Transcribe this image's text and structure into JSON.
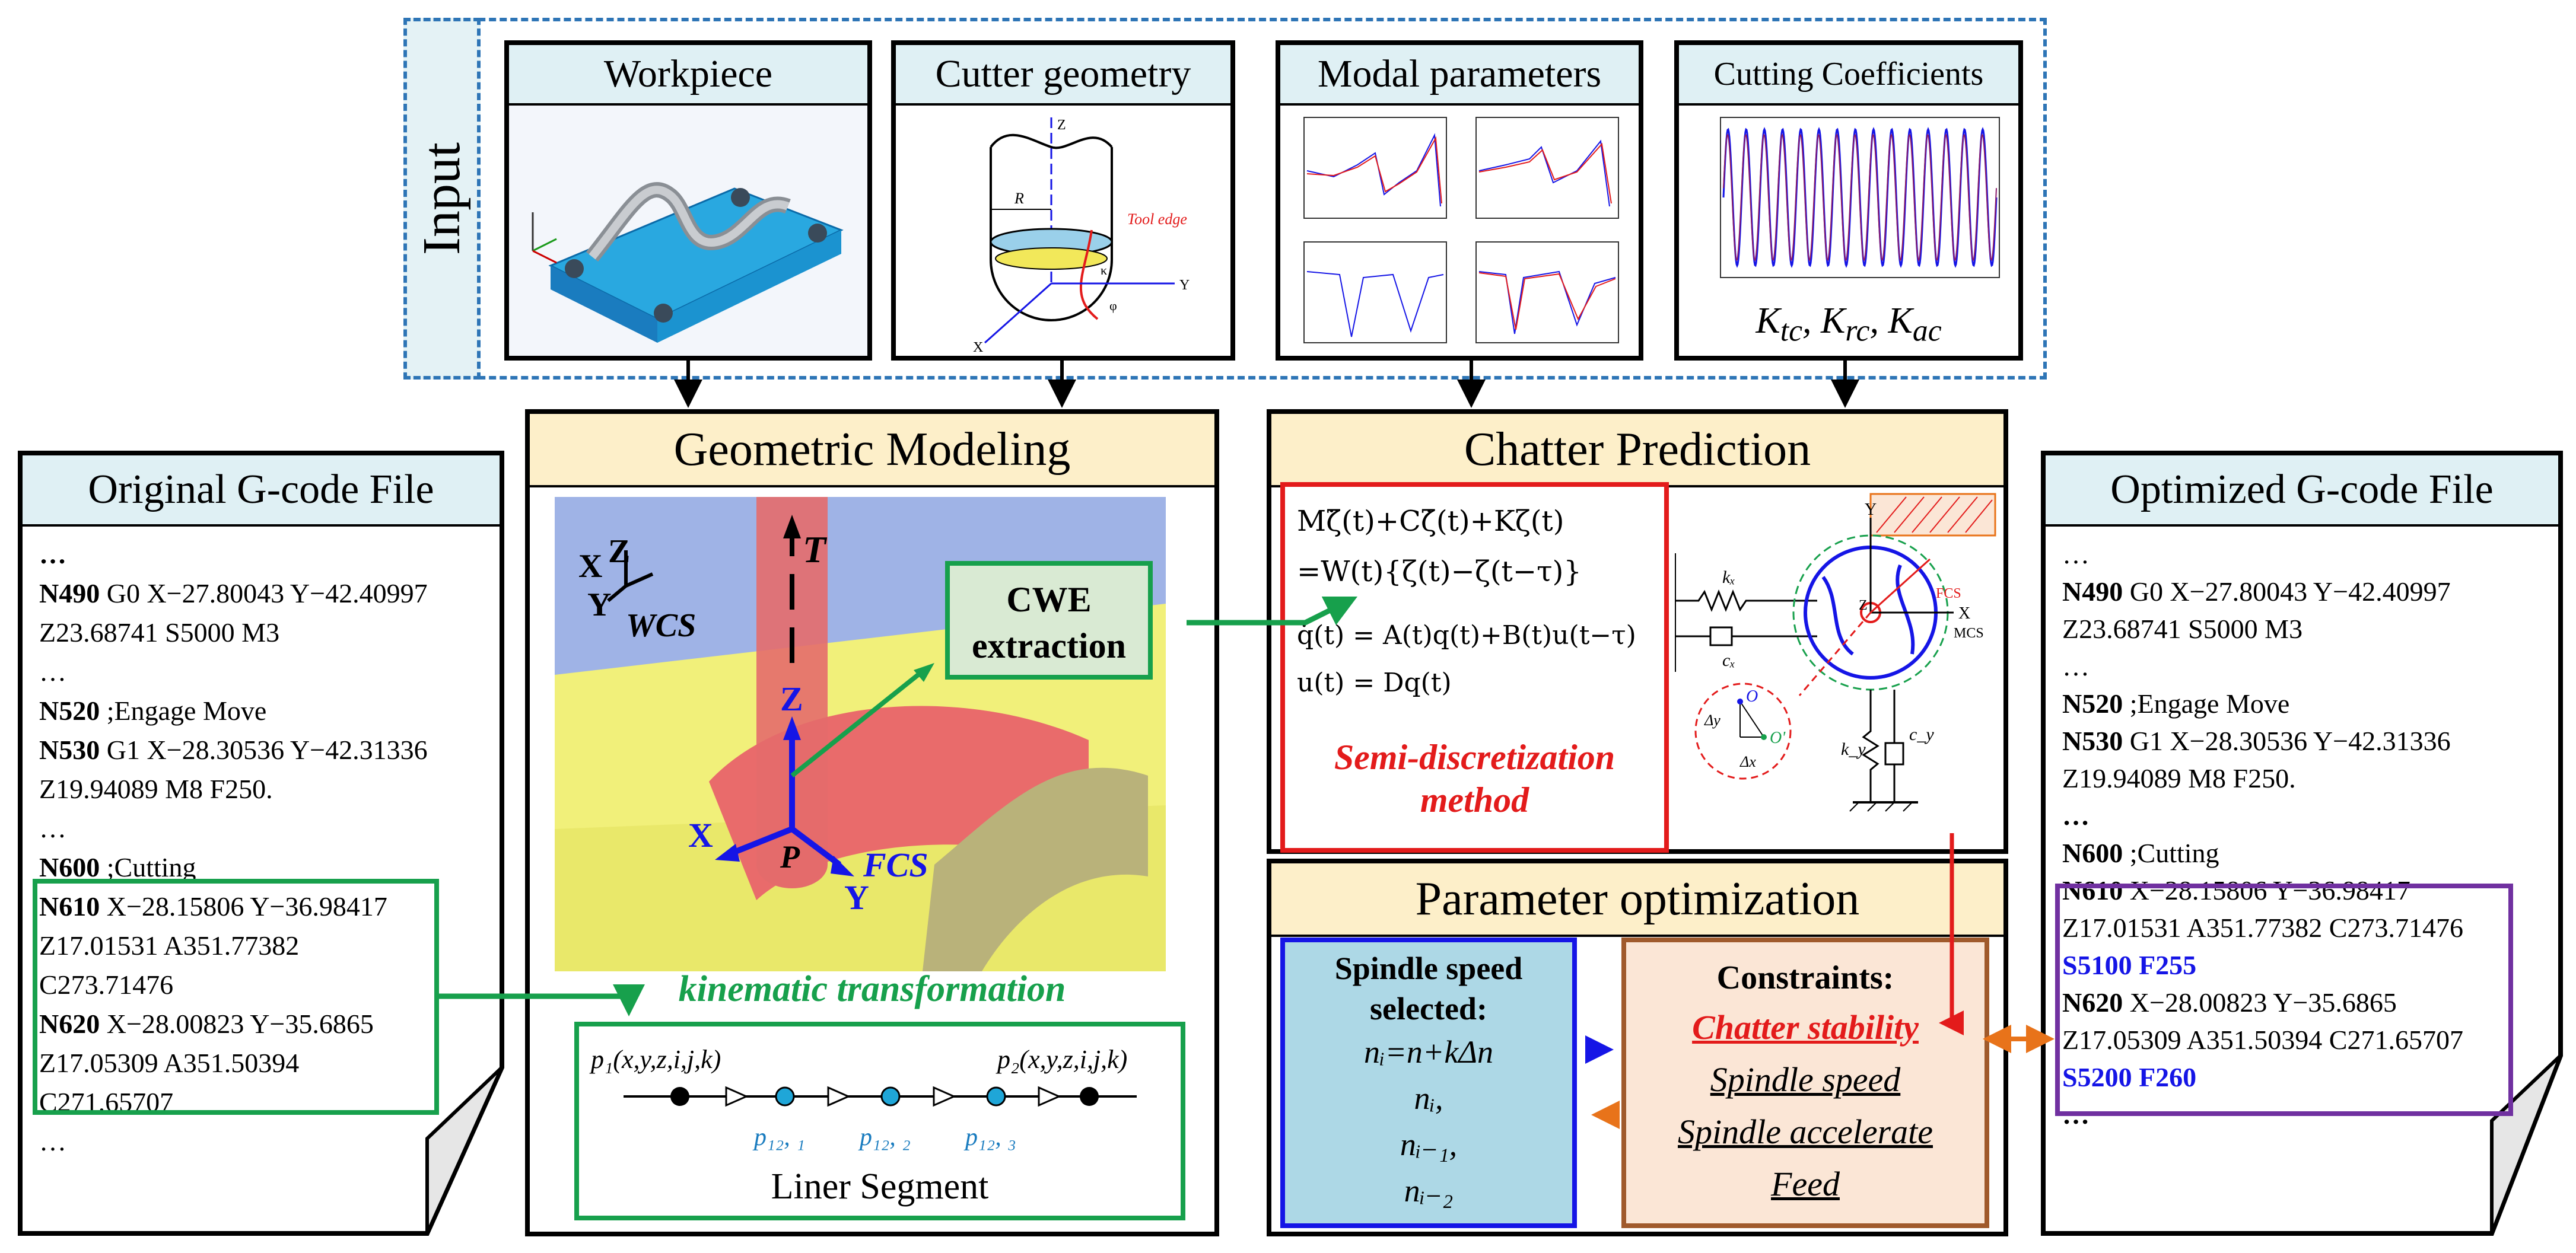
{
  "input": {
    "side_label": "Input",
    "panels": [
      {
        "title": "Workpiece"
      },
      {
        "title": "Cutter geometry",
        "labels": [
          "Z",
          "R",
          "Tool edge",
          "X",
          "Y",
          "φ",
          "κ"
        ]
      },
      {
        "title": "Modal parameters"
      },
      {
        "title": "Cutting Coefficients",
        "formula": "K",
        "formula_parts": [
          "K",
          "tc",
          ", K",
          "rc",
          ", K",
          "ac"
        ]
      }
    ]
  },
  "geometric_modeling": {
    "title": "Geometric Modeling",
    "wcs_label": "WCS",
    "axis_x": "X",
    "axis_y": "Y",
    "axis_z": "Z",
    "tool_axis": "T",
    "fcs_label": "FCS",
    "fcs_x": "X",
    "fcs_y": "Y",
    "fcs_z": "Z",
    "fcs_p": "P",
    "cwe_line1": "CWE",
    "cwe_line2": "extraction",
    "kinematic_label": "kinematic transformation",
    "segment": {
      "p1": "p₁(x,y,z,i,j,k)",
      "p2": "p₂(x,y,z,i,j,k)",
      "mid_points": [
        "p₁₂, ₁",
        "p₁₂, ₂",
        "p₁₂, ₃"
      ],
      "label": "Liner Segment"
    }
  },
  "chatter_prediction": {
    "title": "Chatter Prediction",
    "eq1": "Mζ̈(t)+Cζ̇(t)+Kζ(t)",
    "eq2": "=W(t){ζ(t)−ζ(t−τ)}",
    "eq3": "q̇(t) = A(t)q(t)+B(t)u(t−τ)",
    "eq4": "u(t) = Dq(t)",
    "method_line1": "Semi-discretization",
    "method_line2": "method",
    "dyn_labels": {
      "kx": "kₓ",
      "cx": "cₓ",
      "ky": "k_y",
      "cy": "c_y",
      "y": "Y",
      "z": "Z",
      "x": "X",
      "fcs": "FCS",
      "mcs": "MCS",
      "o": "O",
      "o2": "O'",
      "dy": "Δy",
      "dx": "Δx"
    }
  },
  "parameter_optimization": {
    "title": "Parameter optimization",
    "spindle": {
      "title_line1": "Spindle speed",
      "title_line2": "selected:",
      "formula": "nᵢ=n+kΔn",
      "items": [
        "nᵢ,",
        "nᵢ₋₁,",
        "nᵢ₋₂"
      ]
    },
    "constraints": {
      "title": "Constraints:",
      "items": [
        "Chatter stability",
        "Spindle speed",
        "Spindle accelerate",
        "Feed"
      ]
    }
  },
  "original_gcode": {
    "title": "Original G-code File",
    "lines": [
      {
        "bold": "…",
        "text": ""
      },
      {
        "bold": "N490",
        "text": " G0 X−27.80043 Y−42.40997"
      },
      {
        "bold": "",
        "text": "Z23.68741 S5000 M3"
      },
      {
        "bold": "",
        "text": "…"
      },
      {
        "bold": "N520",
        "text": " ;Engage Move"
      },
      {
        "bold": "N530",
        "text": " G1 X−28.30536 Y−42.31336"
      },
      {
        "bold": "",
        "text": "Z19.94089 M8 F250."
      },
      {
        "bold": "",
        "text": "…"
      },
      {
        "bold": "N600",
        "text": " ;Cutting"
      },
      {
        "bold": "N610",
        "text": " X−28.15806 Y−36.98417"
      },
      {
        "bold": "",
        "text": "Z17.01531 A351.77382"
      },
      {
        "bold": "",
        "text": "C273.71476"
      },
      {
        "bold": "N620",
        "text": " X−28.00823 Y−35.6865"
      },
      {
        "bold": "",
        "text": "Z17.05309 A351.50394"
      },
      {
        "bold": "",
        "text": "C271.65707"
      },
      {
        "bold": "",
        "text": "…"
      }
    ]
  },
  "optimized_gcode": {
    "title": "Optimized G-code File",
    "lines": [
      {
        "bold": "",
        "text": "…",
        "blue": ""
      },
      {
        "bold": "N490",
        "text": " G0 X−27.80043 Y−42.40997",
        "blue": ""
      },
      {
        "bold": "",
        "text": "Z23.68741 S5000 M3",
        "blue": ""
      },
      {
        "bold": "",
        "text": "…",
        "blue": ""
      },
      {
        "bold": "N520",
        "text": " ;Engage Move",
        "blue": ""
      },
      {
        "bold": "N530",
        "text": " G1 X−28.30536 Y−42.31336",
        "blue": ""
      },
      {
        "bold": "",
        "text": "Z19.94089 M8 F250.",
        "blue": ""
      },
      {
        "bold": "…",
        "text": "",
        "blue": ""
      },
      {
        "bold": "N600",
        "text": " ;Cutting",
        "blue": ""
      },
      {
        "bold": "N610",
        "text": " X−28.15806 Y−36.98417",
        "blue": ""
      },
      {
        "bold": "",
        "text": "Z17.01531 A351.77382 C273.71476",
        "blue": ""
      },
      {
        "bold": "",
        "text": "",
        "blue": "S5100 F255"
      },
      {
        "bold": "N620",
        "text": " X−28.00823 Y−35.6865",
        "blue": ""
      },
      {
        "bold": "",
        "text": "Z17.05309 A351.50394 C271.65707",
        "blue": ""
      },
      {
        "bold": "",
        "text": "",
        "blue": "S5200 F260"
      },
      {
        "bold": "…",
        "text": "",
        "blue": ""
      }
    ]
  },
  "colors": {
    "input_border": "#2e75b6",
    "header_blue": "#dff0f4",
    "header_tan": "#fdefc9",
    "green": "#17a04c",
    "red": "#e31b1b",
    "blue": "#1515e6",
    "purple": "#7030a0",
    "orange": "#e8731a",
    "spindle_fill": "#add8e6",
    "constraints_fill": "#fbe6d6",
    "cwe_fill": "#d9ead3"
  }
}
